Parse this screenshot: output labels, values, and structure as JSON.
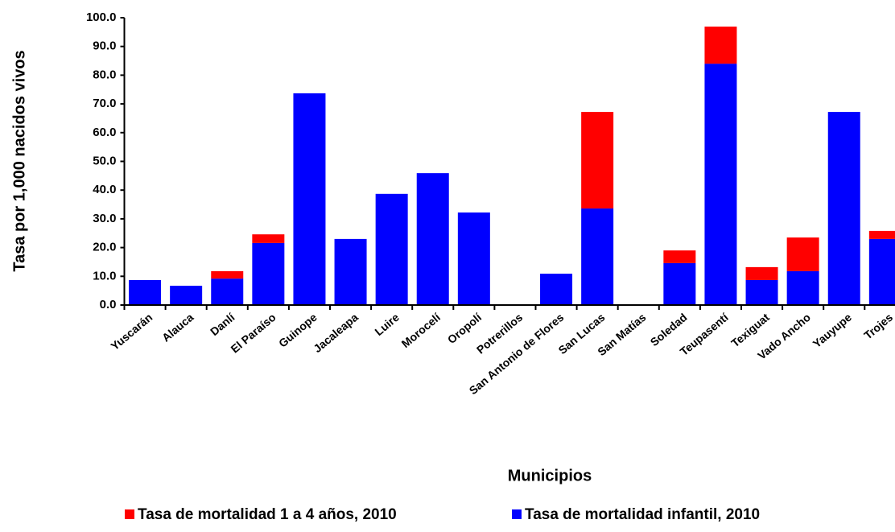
{
  "chart_data": {
    "type": "stacked_bar",
    "xlabel": "Municipios",
    "ylabel": "Tasa por 1,000 nacidos vivos",
    "categories": [
      "Yuscarán",
      "Alauca",
      "Danlí",
      "El Paraíso",
      "Guinope",
      "Jacaleapa",
      "Luire",
      "Morocelí",
      "Oropolí",
      "Potrerillos",
      "San Antonio de Flores",
      "San Lucas",
      "San Matías",
      "Soledad",
      "Teupasentí",
      "Texiguat",
      "Vado Ancho",
      "Yauyupe",
      "Trojes"
    ],
    "series": [
      {
        "name": "Tasa de mortalidad infantil, 2010",
        "color": "#0000ff",
        "values": [
          8.7,
          6.7,
          9.2,
          21.6,
          73.7,
          23.0,
          38.7,
          45.9,
          32.2,
          0,
          10.9,
          33.6,
          0,
          14.6,
          84.0,
          8.7,
          11.8,
          67.2,
          23.0
        ]
      },
      {
        "name": "Tasa de mortalidad 1 a 4 años, 2010",
        "color": "#ff0000",
        "values": [
          0,
          0,
          2.6,
          3.0,
          0,
          0,
          0,
          0,
          0,
          0,
          0,
          33.6,
          0,
          4.4,
          12.9,
          4.5,
          11.7,
          0,
          2.8
        ]
      }
    ],
    "ylim": [
      0,
      100
    ],
    "yticks": [
      {
        "value": 0,
        "label": "0.0"
      },
      {
        "value": 10,
        "label": "10.0"
      },
      {
        "value": 20,
        "label": "20.0"
      },
      {
        "value": 30,
        "label": "30.0"
      },
      {
        "value": 40,
        "label": "40.0"
      },
      {
        "value": 50,
        "label": "50.0"
      },
      {
        "value": 60,
        "label": "60.0"
      },
      {
        "value": 70,
        "label": "70.0"
      },
      {
        "value": 80,
        "label": "80.0"
      },
      {
        "value": 90,
        "label": "90.0"
      },
      {
        "value": 100,
        "label": "100.0"
      }
    ],
    "grid": false
  }
}
